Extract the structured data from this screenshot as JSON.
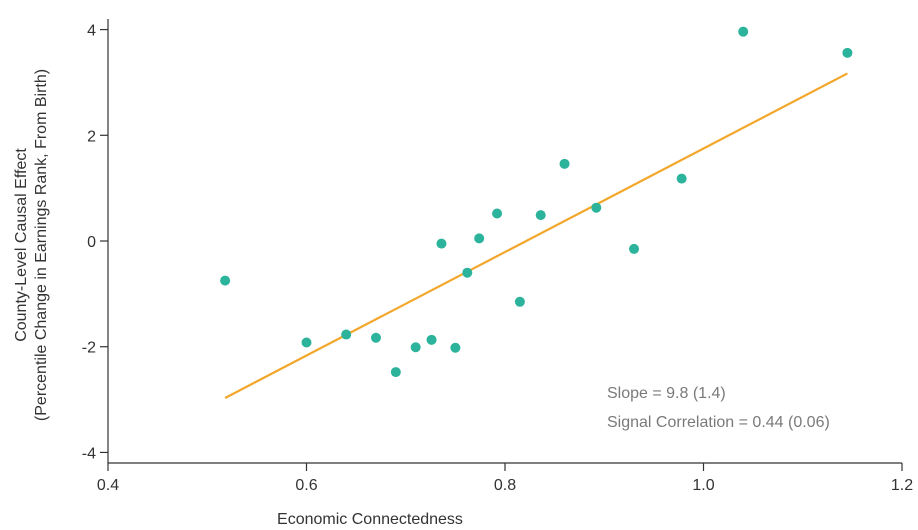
{
  "chart_data": {
    "type": "scatter",
    "title": "",
    "xlabel": "Economic Connectedness",
    "ylabel_line1": "County-Level Causal Effect",
    "ylabel_line2": "(Percentile Change in Earnings Rank, From Birth)",
    "xlim": [
      0.4,
      1.2
    ],
    "ylim": [
      -4.2,
      4.2
    ],
    "x_ticks": [
      0.4,
      0.6,
      0.8,
      1.0,
      1.2
    ],
    "x_tick_labels": [
      "0.4",
      "0.6",
      "0.8",
      "1.0",
      "1.2"
    ],
    "y_ticks": [
      -4,
      -2,
      0,
      2,
      4
    ],
    "y_tick_labels": [
      "-4",
      "-2",
      "0",
      "2",
      "4"
    ],
    "grid": false,
    "point_color": "#2bb39b",
    "fit_color": "#f2a72a",
    "points": [
      {
        "x": 0.518,
        "y": -0.75
      },
      {
        "x": 0.6,
        "y": -1.92
      },
      {
        "x": 0.64,
        "y": -1.77
      },
      {
        "x": 0.67,
        "y": -1.83
      },
      {
        "x": 0.69,
        "y": -2.48
      },
      {
        "x": 0.71,
        "y": -2.01
      },
      {
        "x": 0.726,
        "y": -1.87
      },
      {
        "x": 0.736,
        "y": -0.05
      },
      {
        "x": 0.75,
        "y": -2.02
      },
      {
        "x": 0.762,
        "y": -0.6
      },
      {
        "x": 0.774,
        "y": 0.05
      },
      {
        "x": 0.792,
        "y": 0.52
      },
      {
        "x": 0.815,
        "y": -1.15
      },
      {
        "x": 0.836,
        "y": 0.49
      },
      {
        "x": 0.86,
        "y": 1.46
      },
      {
        "x": 0.892,
        "y": 0.63
      },
      {
        "x": 0.93,
        "y": -0.15
      },
      {
        "x": 0.978,
        "y": 1.18
      },
      {
        "x": 1.04,
        "y": 3.96
      },
      {
        "x": 1.145,
        "y": 3.56
      }
    ],
    "fit_line": {
      "x": [
        0.518,
        1.145
      ],
      "y": [
        -2.97,
        3.17
      ]
    },
    "annotations": {
      "slope": "Slope = 9.8 (1.4)",
      "signal_correlation": "Signal Correlation = 0.44 (0.06)"
    }
  }
}
